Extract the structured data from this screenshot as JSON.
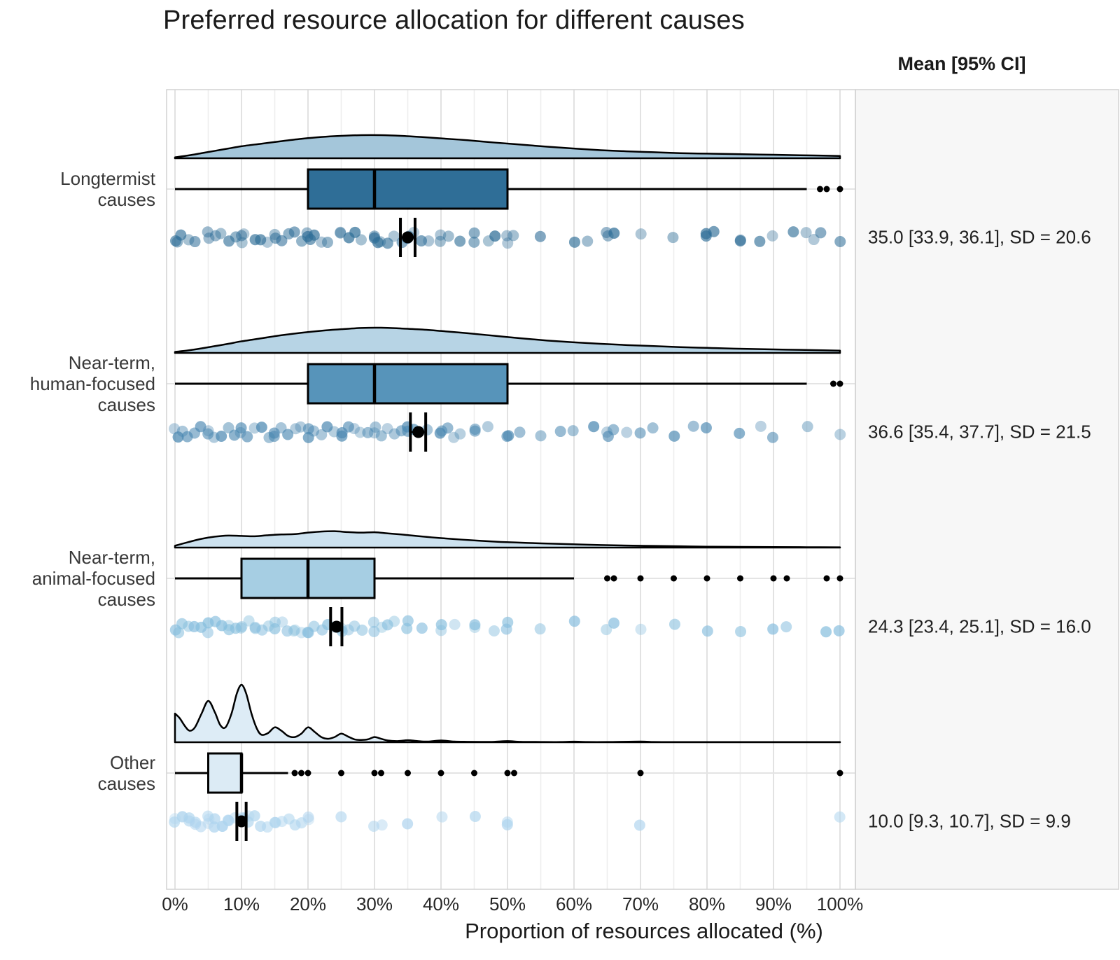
{
  "title": "Preferred resource allocation for different causes",
  "stats_header": "Mean [95% CI]",
  "x_axis": {
    "label": "Proportion of resources allocated (%)",
    "tick_labels": [
      "0%",
      "10%",
      "20%",
      "30%",
      "40%",
      "50%",
      "60%",
      "70%",
      "80%",
      "90%",
      "100%"
    ],
    "range": [
      0,
      100
    ],
    "major_step": 10,
    "minor_step": 5
  },
  "colors": {
    "page_bg": "#ffffff",
    "plot_bg": "#ffffff",
    "stats_panel_bg": "#f7f7f7",
    "panel_border": "#d2d2d2",
    "grid_major": "#e2e2e2",
    "grid_minor": "#eeeeee",
    "row_gridline": "#e4e4e4",
    "box_stroke": "#000000",
    "mean_marker": "#000000"
  },
  "chart_data": {
    "type": "raincloud (half-violin density + boxplot + jittered points)",
    "title": "Preferred resource allocation for different causes",
    "xlabel": "Proportion of resources allocated (%)",
    "ylabel": "",
    "xlim": [
      0,
      100
    ],
    "grid": "vertical gridlines every 5%, horizontal gridline per category",
    "legend_position": "none",
    "stats_column_header": "Mean [95% CI]",
    "series": [
      {
        "label": "Longtermist\ncauses",
        "mean": 35.0,
        "ci_low": 33.9,
        "ci_high": 36.1,
        "sd": 20.6,
        "stats_label": "35.0 [33.9, 36.1], SD = 20.6",
        "box": {
          "q1": 20,
          "median": 30,
          "q3": 50,
          "whisker_low": 0,
          "whisker_high": 95
        },
        "outliers": [
          97,
          98,
          100
        ],
        "colors": {
          "box": "#2f6e97",
          "density_fill": "#a4c6da",
          "point": "#2e6d97"
        },
        "density": [
          [
            0,
            0.04
          ],
          [
            2,
            0.12
          ],
          [
            4,
            0.22
          ],
          [
            6,
            0.32
          ],
          [
            8,
            0.42
          ],
          [
            10,
            0.52
          ],
          [
            13,
            0.63
          ],
          [
            16,
            0.74
          ],
          [
            19,
            0.84
          ],
          [
            22,
            0.92
          ],
          [
            25,
            0.97
          ],
          [
            28,
            1.0
          ],
          [
            31,
            1.0
          ],
          [
            34,
            0.97
          ],
          [
            37,
            0.92
          ],
          [
            40,
            0.86
          ],
          [
            44,
            0.78
          ],
          [
            48,
            0.68
          ],
          [
            52,
            0.59
          ],
          [
            56,
            0.5
          ],
          [
            60,
            0.42
          ],
          [
            64,
            0.35
          ],
          [
            68,
            0.3
          ],
          [
            72,
            0.26
          ],
          [
            76,
            0.22
          ],
          [
            80,
            0.2
          ],
          [
            84,
            0.18
          ],
          [
            88,
            0.16
          ],
          [
            92,
            0.14
          ],
          [
            96,
            0.12
          ],
          [
            100,
            0.1
          ]
        ],
        "points": [
          0,
          0.5,
          1,
          2,
          3,
          5,
          5,
          6,
          7,
          8,
          9,
          10,
          10,
          10.5,
          12,
          13,
          14,
          15,
          15,
          16,
          17,
          18,
          19,
          20,
          20,
          20.5,
          21,
          22,
          23,
          25,
          25,
          26,
          27,
          28,
          30,
          30,
          30.5,
          31,
          32,
          33,
          34,
          35,
          35,
          36,
          37,
          38,
          40,
          40,
          41,
          43,
          45,
          45,
          47,
          48,
          50,
          50,
          51,
          55,
          60,
          62,
          65,
          65,
          66,
          70,
          75,
          80,
          80,
          81,
          85,
          85,
          88,
          90,
          93,
          95,
          96,
          97,
          100
        ]
      },
      {
        "label": "Near-term,\nhuman-focused\ncauses",
        "mean": 36.6,
        "ci_low": 35.4,
        "ci_high": 37.7,
        "sd": 21.5,
        "stats_label": "36.6 [35.4, 37.7], SD = 21.5",
        "box": {
          "q1": 20,
          "median": 30,
          "q3": 50,
          "whisker_low": 0,
          "whisker_high": 95
        },
        "outliers": [
          99,
          100
        ],
        "colors": {
          "box": "#5794ba",
          "density_fill": "#b7d4e5",
          "point": "#4886b0"
        },
        "density": [
          [
            0,
            0.04
          ],
          [
            2,
            0.1
          ],
          [
            4,
            0.18
          ],
          [
            6,
            0.27
          ],
          [
            8,
            0.36
          ],
          [
            10,
            0.46
          ],
          [
            13,
            0.58
          ],
          [
            16,
            0.7
          ],
          [
            19,
            0.8
          ],
          [
            22,
            0.88
          ],
          [
            25,
            0.94
          ],
          [
            28,
            0.99
          ],
          [
            31,
            1.0
          ],
          [
            34,
            0.97
          ],
          [
            37,
            0.93
          ],
          [
            40,
            0.87
          ],
          [
            44,
            0.78
          ],
          [
            48,
            0.68
          ],
          [
            52,
            0.58
          ],
          [
            56,
            0.49
          ],
          [
            60,
            0.42
          ],
          [
            64,
            0.36
          ],
          [
            68,
            0.31
          ],
          [
            72,
            0.27
          ],
          [
            76,
            0.23
          ],
          [
            80,
            0.2
          ],
          [
            84,
            0.17
          ],
          [
            88,
            0.15
          ],
          [
            92,
            0.13
          ],
          [
            96,
            0.11
          ],
          [
            100,
            0.09
          ]
        ],
        "points": [
          0,
          0.5,
          1,
          2,
          3,
          4,
          5,
          5,
          6,
          7,
          8,
          9,
          10,
          10,
          11,
          12,
          13,
          14,
          15,
          15,
          16,
          17,
          18,
          19,
          20,
          20,
          21,
          22,
          23,
          24,
          25,
          25,
          26,
          27,
          28,
          29,
          30,
          30,
          31,
          32,
          33,
          34,
          35,
          35,
          36,
          38,
          40,
          40,
          41,
          42,
          43,
          45,
          45,
          47,
          50,
          50,
          52,
          55,
          58,
          60,
          63,
          65,
          65,
          66,
          68,
          70,
          72,
          75,
          78,
          80,
          85,
          88,
          90,
          95,
          100
        ]
      },
      {
        "label": "Near-term,\nanimal-focused\ncauses",
        "mean": 24.3,
        "ci_low": 23.4,
        "ci_high": 25.1,
        "sd": 16.0,
        "stats_label": "24.3 [23.4, 25.1], SD = 16.0",
        "box": {
          "q1": 10,
          "median": 20,
          "q3": 30,
          "whisker_low": 0,
          "whisker_high": 60
        },
        "outliers": [
          65,
          66,
          70,
          75,
          80,
          85,
          90,
          92,
          98,
          100
        ],
        "colors": {
          "box": "#a6cee3",
          "density_fill": "#cde2ef",
          "point": "#85bddd"
        },
        "density": [
          [
            0,
            0.1
          ],
          [
            2,
            0.3
          ],
          [
            4,
            0.48
          ],
          [
            6,
            0.6
          ],
          [
            8,
            0.66
          ],
          [
            10,
            0.64
          ],
          [
            12,
            0.62
          ],
          [
            14,
            0.68
          ],
          [
            16,
            0.72
          ],
          [
            18,
            0.74
          ],
          [
            20,
            0.82
          ],
          [
            22,
            0.88
          ],
          [
            24,
            0.9
          ],
          [
            26,
            0.85
          ],
          [
            28,
            0.82
          ],
          [
            30,
            0.84
          ],
          [
            32,
            0.78
          ],
          [
            34,
            0.72
          ],
          [
            36,
            0.65
          ],
          [
            38,
            0.58
          ],
          [
            40,
            0.52
          ],
          [
            43,
            0.44
          ],
          [
            46,
            0.37
          ],
          [
            49,
            0.31
          ],
          [
            52,
            0.27
          ],
          [
            55,
            0.23
          ],
          [
            58,
            0.2
          ],
          [
            61,
            0.17
          ],
          [
            64,
            0.14
          ],
          [
            68,
            0.11
          ],
          [
            72,
            0.09
          ],
          [
            76,
            0.07
          ],
          [
            80,
            0.05
          ],
          [
            85,
            0.04
          ],
          [
            90,
            0.03
          ],
          [
            95,
            0.02
          ],
          [
            100,
            0.015
          ]
        ],
        "points": [
          0,
          0.5,
          1,
          2,
          3,
          4,
          5,
          5,
          6,
          7,
          8,
          8,
          9,
          10,
          10,
          11,
          12,
          12,
          13,
          14,
          15,
          15,
          16,
          17,
          18,
          18,
          19,
          20,
          20,
          21,
          22,
          23,
          24,
          25,
          25,
          26,
          27,
          28,
          30,
          30,
          31,
          32,
          33,
          35,
          35,
          37,
          40,
          40,
          42,
          45,
          45,
          48,
          50,
          50,
          55,
          60,
          65,
          66,
          70,
          75,
          80,
          85,
          90,
          92,
          98,
          100
        ]
      },
      {
        "label": "Other\ncauses",
        "mean": 10.0,
        "ci_low": 9.3,
        "ci_high": 10.7,
        "sd": 9.9,
        "stats_label": "10.0 [9.3, 10.7], SD = 9.9",
        "box": {
          "q1": 5,
          "median": 10,
          "q3": 10,
          "whisker_low": 0,
          "whisker_high": 17
        },
        "outliers": [
          18,
          19,
          20,
          25,
          30,
          31,
          35,
          40,
          45,
          50,
          51,
          70,
          100
        ],
        "colors": {
          "box": "#dcebf5",
          "density_fill": "#ddecf6",
          "point": "#aed4ee"
        },
        "density": [
          [
            0,
            0.5
          ],
          [
            0.7,
            0.42
          ],
          [
            1.5,
            0.28
          ],
          [
            2.2,
            0.2
          ],
          [
            3,
            0.26
          ],
          [
            4,
            0.5
          ],
          [
            5,
            0.72
          ],
          [
            6,
            0.52
          ],
          [
            6.8,
            0.3
          ],
          [
            7.6,
            0.26
          ],
          [
            8.5,
            0.5
          ],
          [
            9.3,
            0.85
          ],
          [
            10,
            1.0
          ],
          [
            10.7,
            0.85
          ],
          [
            11.5,
            0.5
          ],
          [
            12.3,
            0.24
          ],
          [
            13,
            0.13
          ],
          [
            14,
            0.16
          ],
          [
            15,
            0.26
          ],
          [
            16,
            0.2
          ],
          [
            17,
            0.11
          ],
          [
            18,
            0.09
          ],
          [
            19,
            0.15
          ],
          [
            20,
            0.26
          ],
          [
            21,
            0.18
          ],
          [
            22,
            0.09
          ],
          [
            23,
            0.06
          ],
          [
            24,
            0.09
          ],
          [
            25,
            0.15
          ],
          [
            26,
            0.1
          ],
          [
            27,
            0.05
          ],
          [
            28,
            0.04
          ],
          [
            29,
            0.05
          ],
          [
            30,
            0.09
          ],
          [
            31,
            0.06
          ],
          [
            32,
            0.03
          ],
          [
            33.5,
            0.02
          ],
          [
            35,
            0.035
          ],
          [
            36.5,
            0.02
          ],
          [
            38,
            0.012
          ],
          [
            40,
            0.03
          ],
          [
            42,
            0.012
          ],
          [
            44,
            0.008
          ],
          [
            46,
            0.006
          ],
          [
            48,
            0.008
          ],
          [
            50,
            0.02
          ],
          [
            52,
            0.008
          ],
          [
            55,
            0.005
          ],
          [
            58,
            0.004
          ],
          [
            60,
            0.01
          ],
          [
            62,
            0.004
          ],
          [
            65,
            0.004
          ],
          [
            70,
            0.012
          ],
          [
            72,
            0.004
          ],
          [
            75,
            0.003
          ],
          [
            80,
            0.003
          ],
          [
            85,
            0.003
          ],
          [
            90,
            0.003
          ],
          [
            95,
            0.003
          ],
          [
            100,
            0.003
          ]
        ],
        "points": [
          0,
          0,
          1,
          1,
          2,
          2,
          3,
          3,
          4,
          5,
          5,
          5,
          6,
          6,
          7,
          7,
          8,
          8,
          9,
          10,
          10,
          10,
          10.5,
          11,
          11,
          12,
          13,
          14,
          15,
          15,
          16,
          17,
          18,
          19,
          20,
          20,
          25,
          30,
          31,
          35,
          40,
          45,
          50,
          50,
          70,
          100
        ]
      }
    ]
  }
}
